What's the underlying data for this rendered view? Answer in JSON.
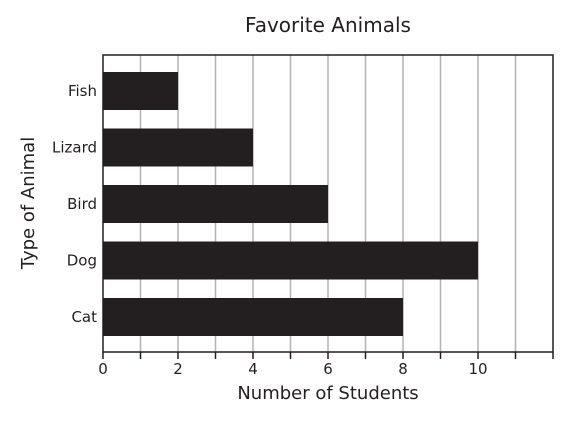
{
  "chart_data": {
    "type": "bar",
    "orientation": "horizontal",
    "title": "Favorite Animals",
    "xlabel": "Number of Students",
    "ylabel": "Type of Animal",
    "categories": [
      "Fish",
      "Lizard",
      "Bird",
      "Dog",
      "Cat"
    ],
    "values": [
      2,
      4,
      6,
      10,
      8
    ],
    "xlim": [
      0,
      12
    ],
    "xticks": [
      0,
      2,
      4,
      6,
      8,
      10
    ],
    "grid": true,
    "bar_color": "#231f20",
    "grid_color": "#b3b3b3"
  }
}
